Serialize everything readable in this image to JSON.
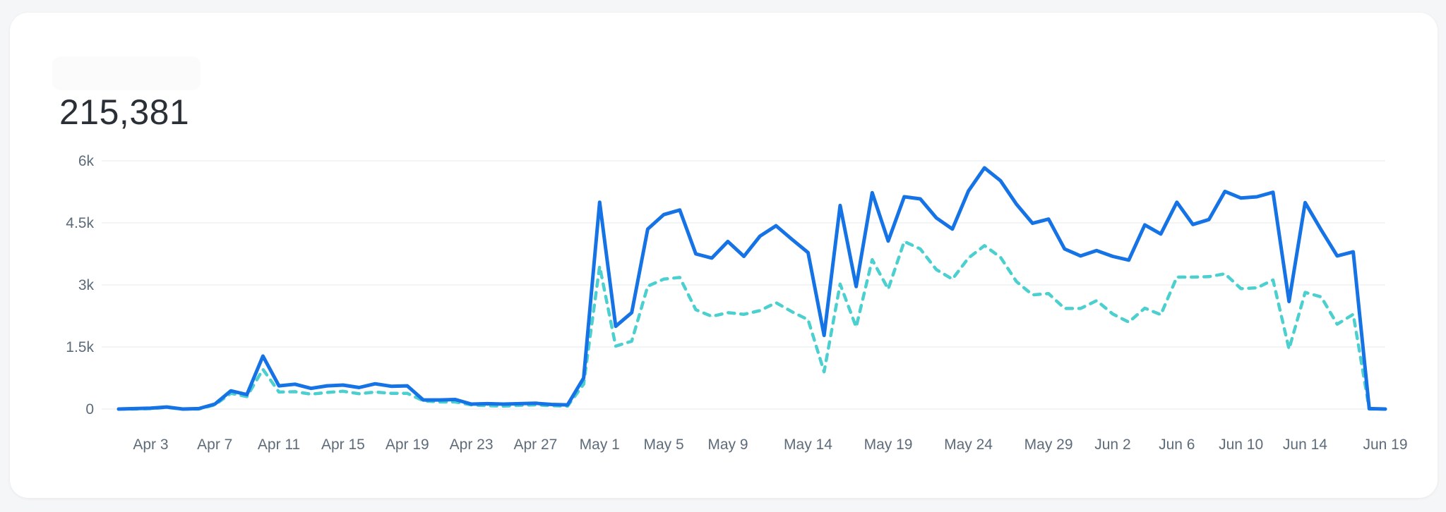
{
  "card": {
    "total": "215,381"
  },
  "chart_data": {
    "type": "line",
    "ylim": [
      0,
      6000
    ],
    "yticks": [
      "0",
      "1.5k",
      "3k",
      "4.5k",
      "6k"
    ],
    "ytick_values": [
      0,
      1500,
      3000,
      4500,
      6000
    ],
    "xtick_labels": [
      "Apr 3",
      "Apr 7",
      "Apr 11",
      "Apr 15",
      "Apr 19",
      "Apr 23",
      "Apr 27",
      "May 1",
      "May 5",
      "May 9",
      "May 14",
      "May 19",
      "May 24",
      "May 29",
      "Jun 2",
      "Jun 6",
      "Jun 10",
      "Jun 14",
      "Jun 19"
    ],
    "xtick_index": [
      2,
      6,
      10,
      14,
      18,
      22,
      26,
      30,
      34,
      38,
      43,
      48,
      53,
      58,
      62,
      66,
      70,
      74,
      79
    ],
    "grid": true,
    "series": [
      {
        "style": "solid",
        "color": "#1573e6",
        "values": [
          0,
          10,
          20,
          50,
          0,
          10,
          120,
          440,
          350,
          1280,
          560,
          600,
          500,
          560,
          580,
          520,
          610,
          550,
          560,
          220,
          220,
          230,
          120,
          130,
          120,
          130,
          140,
          110,
          100,
          750,
          5000,
          2000,
          2330,
          4350,
          4700,
          4810,
          3750,
          3650,
          4050,
          3690,
          4180,
          4430,
          4100,
          3780,
          1780,
          4920,
          2960,
          5230,
          4060,
          5130,
          5080,
          4620,
          4350,
          5270,
          5830,
          5520,
          4950,
          4490,
          4590,
          3870,
          3700,
          3830,
          3690,
          3600,
          4450,
          4230,
          5000,
          4460,
          4580,
          5260,
          5100,
          5130,
          5240,
          2600,
          4990,
          4330,
          3700,
          3800,
          10,
          0
        ]
      },
      {
        "style": "dashed",
        "color": "#4ccfcf",
        "values": [
          0,
          0,
          10,
          40,
          0,
          0,
          100,
          380,
          300,
          960,
          410,
          420,
          360,
          400,
          430,
          370,
          410,
          380,
          380,
          200,
          170,
          170,
          100,
          80,
          70,
          90,
          100,
          80,
          70,
          600,
          3450,
          1520,
          1640,
          2970,
          3140,
          3180,
          2400,
          2240,
          2330,
          2290,
          2380,
          2570,
          2350,
          2160,
          900,
          3020,
          1980,
          3610,
          2900,
          4050,
          3870,
          3370,
          3140,
          3650,
          3950,
          3670,
          3080,
          2760,
          2790,
          2430,
          2430,
          2620,
          2300,
          2100,
          2440,
          2280,
          3190,
          3190,
          3200,
          3270,
          2910,
          2930,
          3120,
          1450,
          2820,
          2710,
          2050,
          2290,
          0,
          0
        ]
      }
    ]
  }
}
